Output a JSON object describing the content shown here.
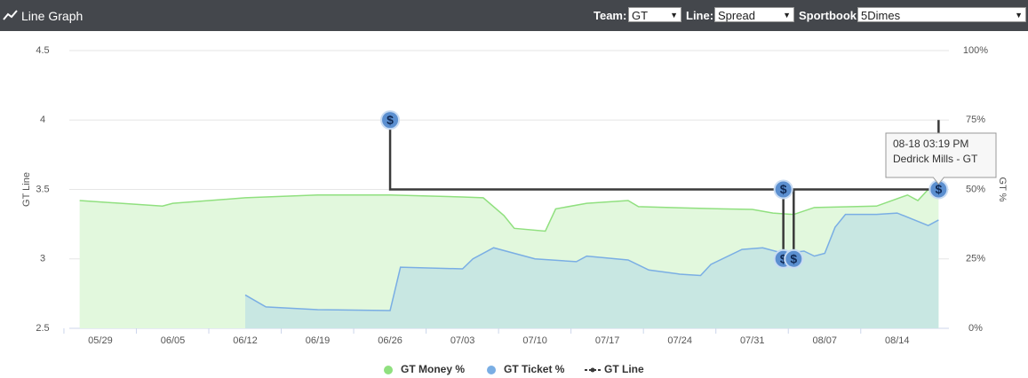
{
  "header": {
    "title": "Line Graph",
    "team_label": "Team:",
    "team": "GT",
    "line_label": "Line:",
    "line": "Spread",
    "sportbook_label": "Sportbook:",
    "sportbook": "5Dimes"
  },
  "chart_data": {
    "type": "line",
    "ylabel": "GT Line",
    "y2label": "GT %",
    "xlim": [
      "05/26",
      "08/19"
    ],
    "xticks": [
      "05/29",
      "06/05",
      "06/12",
      "06/19",
      "06/26",
      "07/03",
      "07/10",
      "07/17",
      "07/24",
      "07/31",
      "08/07",
      "08/14"
    ],
    "ylim": [
      2.5,
      4.5
    ],
    "yticks": [
      2.5,
      3,
      3.5,
      4,
      4.5
    ],
    "y2lim": [
      0,
      100
    ],
    "y2ticks": [
      {
        "value": 0,
        "label": "0%"
      },
      {
        "value": 25,
        "label": "25%"
      },
      {
        "value": 50,
        "label": "50%"
      },
      {
        "value": 75,
        "label": "75%"
      },
      {
        "value": 100,
        "label": "100%"
      }
    ],
    "grid": true,
    "series": [
      {
        "name": "GT Money %",
        "color": "#90e07f",
        "fill": "#e2f8dd",
        "axis": "y2",
        "area": true,
        "x": [
          "05/27",
          "06/04",
          "06/05",
          "06/12",
          "06/19",
          "06/26",
          "07/03",
          "07/05",
          "07/07",
          "07/08",
          "07/11",
          "07/12",
          "07/15",
          "07/19",
          "07/20",
          "07/28",
          "07/31",
          "08/02",
          "08/04",
          "08/06",
          "08/12",
          "08/15",
          "08/16",
          "08/17",
          "08/18"
        ],
        "values": [
          46,
          44,
          45,
          47,
          48,
          48,
          47.3,
          47,
          40.6,
          36,
          35,
          43,
          45,
          46,
          43.8,
          43,
          42.8,
          41.5,
          41,
          43.5,
          44,
          48,
          46,
          50,
          50.5
        ]
      },
      {
        "name": "GT Ticket %",
        "color": "#7aaee4",
        "fill": "#c8e7e2",
        "axis": "y2",
        "area": true,
        "x": [
          "06/12",
          "06/14",
          "06/19",
          "06/26",
          "06/27",
          "07/03",
          "07/04",
          "07/06",
          "07/10",
          "07/14",
          "07/15",
          "07/19",
          "07/21",
          "07/24",
          "07/26",
          "07/27",
          "07/30",
          "08/01",
          "08/03",
          "08/05",
          "08/06",
          "08/07",
          "08/08",
          "08/09",
          "08/12",
          "08/14",
          "08/17",
          "08/18"
        ],
        "values": [
          12,
          7.7,
          6.7,
          6.4,
          22,
          21.4,
          25,
          29,
          25,
          24,
          26,
          24.6,
          21,
          19.5,
          19,
          23,
          28.4,
          29,
          27,
          27.8,
          26,
          27,
          36.4,
          41,
          41,
          41.5,
          37,
          39
        ]
      },
      {
        "name": "GT Line",
        "color": "#3a3a3a",
        "area": false,
        "x": [
          "06/26",
          "06/26",
          "08/03",
          "08/03",
          "08/04",
          "08/04",
          "08/18",
          "08/18"
        ],
        "values": [
          4,
          3.5,
          3.5,
          3,
          3,
          3.5,
          3.5,
          4
        ]
      }
    ],
    "tooltip": {
      "time": "08-18 03:19 PM",
      "text": "Dedrick Mills - GT"
    }
  }
}
